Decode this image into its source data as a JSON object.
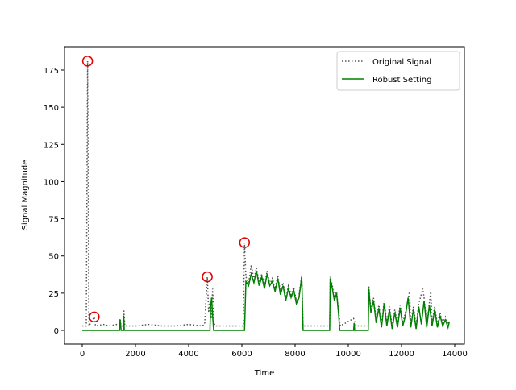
{
  "chart_data": {
    "type": "line",
    "xlabel": "Time",
    "ylabel": "Signal Magnitude",
    "xlim": [
      -667,
      14364
    ],
    "ylim": [
      -9.2,
      190.7
    ],
    "xticks": [
      0,
      2000,
      4000,
      6000,
      8000,
      10000,
      12000,
      14000
    ],
    "yticks": [
      0,
      25,
      50,
      75,
      100,
      125,
      150,
      175
    ],
    "legend": "upper right",
    "series": [
      {
        "name": "Original Signal",
        "color": "#555555",
        "style": "dotted",
        "x": [
          0,
          150,
          200,
          250,
          450,
          500,
          800,
          1000,
          1300,
          1400,
          1420,
          1460,
          1540,
          1560,
          1600,
          2000,
          2500,
          3000,
          3500,
          4000,
          4500,
          4600,
          4700,
          4750,
          4800,
          4850,
          4900,
          4950,
          5000,
          5500,
          6050,
          6100,
          6150,
          6250,
          6350,
          6450,
          6550,
          6650,
          6750,
          6850,
          6950,
          7050,
          7150,
          7250,
          7350,
          7450,
          7550,
          7650,
          7750,
          7850,
          7950,
          8050,
          8150,
          8250,
          8300,
          8800,
          9300,
          9320,
          9400,
          9480,
          9560,
          9640,
          9700,
          10000,
          10200,
          10300,
          10750,
          10770,
          10850,
          10950,
          11050,
          11150,
          11250,
          11350,
          11450,
          11550,
          11650,
          11750,
          11850,
          11950,
          12050,
          12150,
          12300,
          12350,
          12450,
          12550,
          12650,
          12800,
          12850,
          12950,
          13100,
          13150,
          13250,
          13350,
          13450,
          13550,
          13650,
          13750,
          13800
        ],
        "values": [
          3,
          3,
          181,
          3,
          9,
          3,
          4,
          3,
          4,
          3,
          8,
          3,
          3,
          14,
          3,
          3,
          4,
          3,
          3,
          4,
          3,
          4,
          36,
          12,
          20,
          8,
          28,
          5,
          3,
          3,
          3,
          59,
          36,
          32,
          44,
          34,
          42,
          32,
          38,
          30,
          40,
          31,
          35,
          28,
          37,
          26,
          32,
          22,
          30,
          24,
          29,
          20,
          24,
          37,
          3,
          3,
          3,
          36,
          30,
          22,
          26,
          12,
          3,
          6,
          8,
          3,
          3,
          30,
          14,
          22,
          7,
          17,
          4,
          20,
          5,
          16,
          3,
          14,
          4,
          17,
          5,
          12,
          26,
          4,
          16,
          3,
          18,
          28,
          22,
          4,
          26,
          5,
          16,
          4,
          12,
          5,
          9,
          4,
          6
        ]
      },
      {
        "name": "Robust Setting",
        "color": "#008000",
        "style": "solid",
        "x": [
          0,
          1400,
          1420,
          1460,
          1540,
          1560,
          1580,
          4800,
          4820,
          4860,
          4900,
          4940,
          6100,
          6150,
          6250,
          6350,
          6450,
          6550,
          6650,
          6750,
          6850,
          6950,
          7050,
          7150,
          7250,
          7350,
          7450,
          7550,
          7650,
          7750,
          7850,
          7950,
          8050,
          8150,
          8250,
          8300,
          9300,
          9320,
          9400,
          9480,
          9560,
          9640,
          9680,
          10200,
          10220,
          10240,
          10750,
          10770,
          10850,
          10950,
          11050,
          11150,
          11250,
          11350,
          11450,
          11550,
          11650,
          11750,
          11850,
          11950,
          12050,
          12150,
          12250,
          12350,
          12450,
          12550,
          12650,
          12750,
          12850,
          12950,
          13050,
          13150,
          13250,
          13350,
          13450,
          13550,
          13650,
          13750,
          13800
        ],
        "values": [
          0,
          0,
          7,
          0,
          0,
          10,
          0,
          0,
          15,
          22,
          10,
          0,
          0,
          33,
          30,
          38,
          32,
          40,
          30,
          36,
          28,
          38,
          30,
          33,
          26,
          35,
          24,
          30,
          20,
          28,
          22,
          27,
          18,
          22,
          36,
          0,
          0,
          35,
          28,
          20,
          25,
          10,
          0,
          0,
          5,
          0,
          0,
          28,
          12,
          20,
          5,
          15,
          2,
          18,
          3,
          14,
          1,
          12,
          2,
          15,
          3,
          10,
          22,
          2,
          14,
          1,
          16,
          4,
          20,
          2,
          17,
          3,
          14,
          2,
          10,
          3,
          7,
          2,
          6
        ]
      }
    ],
    "highlights": {
      "color": "#e00000",
      "x": [
        200,
        450,
        4700,
        6100
      ],
      "values": [
        181,
        9,
        36,
        59
      ]
    }
  }
}
